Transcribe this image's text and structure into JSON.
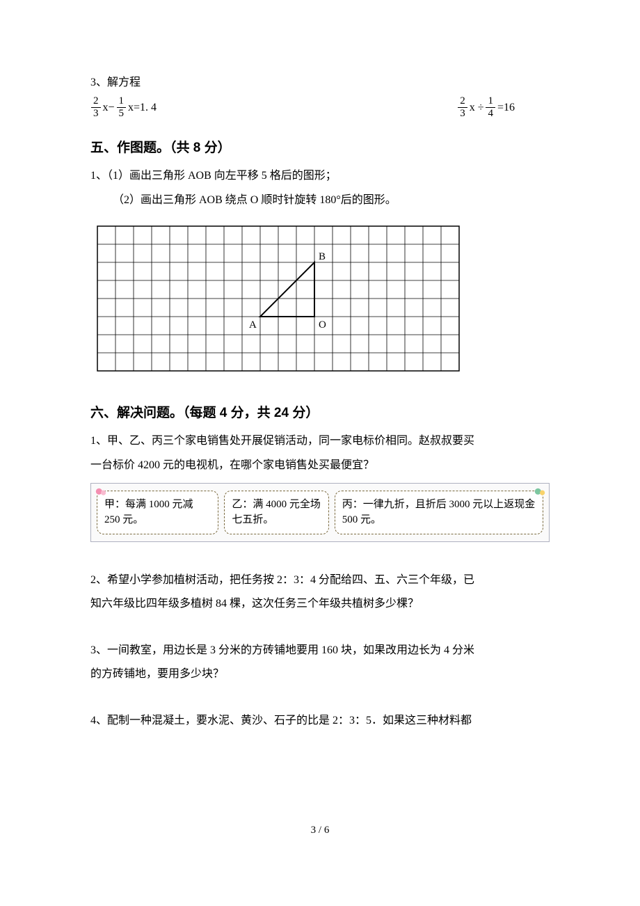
{
  "q3": {
    "label": "3、解方程",
    "left": {
      "f1n": "2",
      "f1d": "3",
      "mid": "x−",
      "f2n": "1",
      "f2d": "5",
      "tail": "x=1. 4"
    },
    "right": {
      "f1n": "2",
      "f1d": "3",
      "mid": "x ÷",
      "f2n": "1",
      "f2d": "4",
      "tail": "=16"
    }
  },
  "sec5": {
    "heading": "五、作图题。（共 8 分）",
    "line1": "1、（1）画出三角形 AOB 向左平移 5 格后的图形；",
    "line2": "（2）画出三角形 AOB 绕点 O 顺时针旋转 180°后的图形。",
    "grid": {
      "cols": 20,
      "rows": 8,
      "cell": 26,
      "stroke": "#000000",
      "A": {
        "col": 9,
        "row": 5,
        "label": "A"
      },
      "O": {
        "col": 12,
        "row": 5,
        "label": "O"
      },
      "B": {
        "col": 12,
        "row": 2,
        "label": "B"
      }
    }
  },
  "sec6": {
    "heading": "六、解决问题。（每题 4 分，共 24 分）",
    "q1a": "1、甲、乙、丙三个家电销售处开展促销活动，同一家电标价相同。赵叔叔要买",
    "q1b": "一台标价 4200 元的电视机，在哪个家电销售处买最便宜？",
    "boxes": {
      "a": "甲：每满 1000 元减 250 元。",
      "b": "乙：满 4000 元全场七五折。",
      "c": "丙：一律九折，且折后 3000 元以上返现金 500 元。"
    },
    "q2a": "2、希望小学参加植树活动，把任务按 2：3：4 分配给四、五、六三个年级，已",
    "q2b": "知六年级比四年级多植树 84 棵，这次任务三个年级共植树多少棵？",
    "q3a": "3、一间教室，用边长是 3 分米的方砖铺地要用 160 块，如果改用边长为 4 分米",
    "q3b": "的方砖铺地，要用多少块？",
    "q4": "4、配制一种混凝土，要水泥、黄沙、石子的比是 2：3：5．如果这三种材料都"
  },
  "footer": "3 / 6",
  "balloon_colors": {
    "a": "#f48fb1",
    "b": "#f9d36b",
    "c": "#7cc6a0"
  }
}
